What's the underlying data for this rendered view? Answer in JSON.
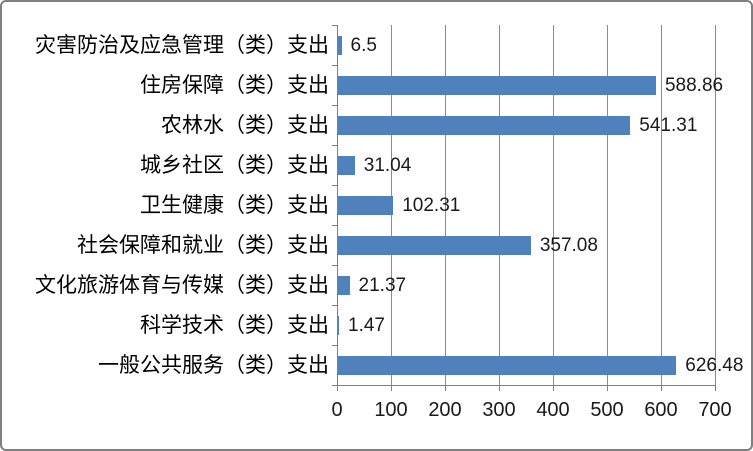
{
  "chart_data": {
    "type": "bar",
    "orientation": "horizontal",
    "title": "",
    "xlabel": "",
    "ylabel": "",
    "categories": [
      "灾害防治及应急管理（类）支出",
      "住房保障（类）支出",
      "农林水（类）支出",
      "城乡社区（类）支出",
      "卫生健康（类）支出",
      "社会保障和就业（类）支出",
      "文化旅游体育与传媒（类）支出",
      "科学技术（类）支出",
      "一般公共服务（类）支出"
    ],
    "values": [
      6.5,
      588.86,
      541.31,
      31.04,
      102.31,
      357.08,
      21.37,
      1.47,
      626.48
    ],
    "value_labels": [
      "6.5",
      "588.86",
      "541.31",
      "31.04",
      "102.31",
      "357.08",
      "21.37",
      "1.47",
      "626.48"
    ],
    "xlim": [
      0,
      700
    ],
    "x_tick_values": [
      0,
      100,
      200,
      300,
      400,
      500,
      600,
      700
    ],
    "x_tick_labels": [
      "0",
      "100",
      "200",
      "300",
      "400",
      "500",
      "600",
      "700"
    ],
    "grid": "vertical-gridlines-on",
    "legend": false,
    "data_labels": "shown-right-of-bars",
    "colors": {
      "bar": "#4f81bd",
      "gridline": "#8c8c8c",
      "axis": "#7f7f7f",
      "frame_border": "#7f7f7f",
      "category_text": "#000000",
      "value_text": "#1a1a1a",
      "background": "#ffffff"
    }
  }
}
